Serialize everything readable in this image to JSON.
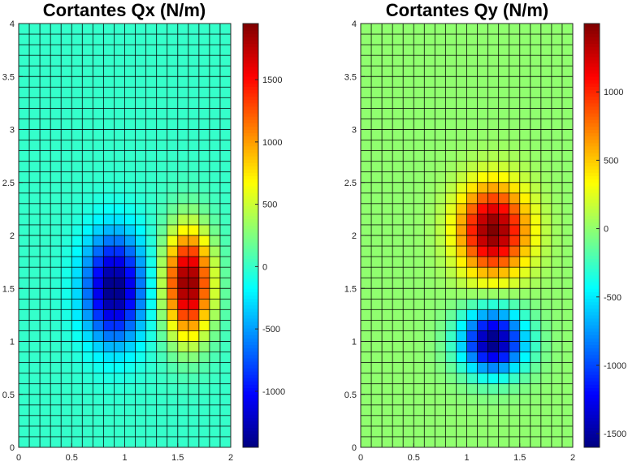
{
  "chart_data": [
    {
      "type": "heatmap",
      "title": "Cortantes Qx (N/m)",
      "xlabel": "",
      "ylabel": "",
      "xlim": [
        0,
        2
      ],
      "ylim": [
        0,
        4
      ],
      "xticks": [
        0,
        0.5,
        1,
        1.5,
        2
      ],
      "yticks": [
        0,
        0.5,
        1,
        1.5,
        2,
        2.5,
        3,
        3.5,
        4
      ],
      "grid": {
        "nx": 20,
        "ny": 40
      },
      "colormap": "jet",
      "colorbar": {
        "clim": [
          -1450,
          1950
        ],
        "ticks": [
          -1000,
          -500,
          0,
          500,
          1000,
          1500
        ]
      },
      "field": {
        "background": 0,
        "features": [
          {
            "x": 0.9,
            "y": 1.5,
            "value": -1450,
            "sx": 0.28,
            "sy": 0.5
          },
          {
            "x": 1.6,
            "y": 1.55,
            "value": 1950,
            "sx": 0.22,
            "sy": 0.5
          }
        ]
      }
    },
    {
      "type": "heatmap",
      "title": "Cortantes Qy (N/m)",
      "xlabel": "",
      "ylabel": "",
      "xlim": [
        0,
        2
      ],
      "ylim": [
        0,
        4
      ],
      "xticks": [
        0,
        0.5,
        1,
        1.5,
        2
      ],
      "yticks": [
        0,
        0.5,
        1,
        1.5,
        2,
        2.5,
        3,
        3.5,
        4
      ],
      "grid": {
        "nx": 20,
        "ny": 40
      },
      "colormap": "jet",
      "colorbar": {
        "clim": [
          -1600,
          1500
        ],
        "ticks": [
          -1500,
          -1000,
          -500,
          0,
          500,
          1000
        ]
      },
      "field": {
        "background": 0,
        "features": [
          {
            "x": 1.25,
            "y": 2.05,
            "value": 1500,
            "sx": 0.32,
            "sy": 0.42
          },
          {
            "x": 1.25,
            "y": 1.0,
            "value": -1600,
            "sx": 0.3,
            "sy": 0.3
          }
        ]
      }
    }
  ]
}
